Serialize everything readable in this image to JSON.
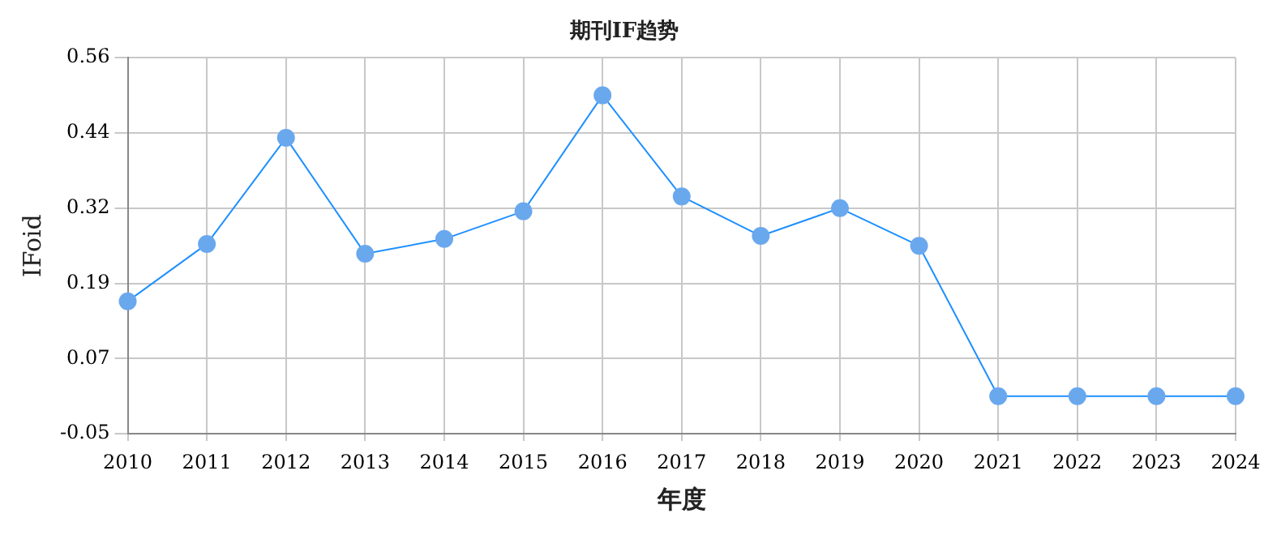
{
  "chart_data": {
    "type": "line",
    "title": "期刊IF趋势",
    "xlabel": "年度",
    "ylabel": "IFoid",
    "categories": [
      "2010",
      "2011",
      "2012",
      "2013",
      "2014",
      "2015",
      "2016",
      "2017",
      "2018",
      "2019",
      "2020",
      "2021",
      "2022",
      "2023",
      "2024"
    ],
    "series": [
      {
        "color": "#1e90ff",
        "values": [
          0.165,
          0.258,
          0.43,
          0.242,
          0.266,
          0.311,
          0.499,
          0.335,
          0.271,
          0.316,
          0.255,
          0.011,
          0.011,
          0.011,
          0.011
        ]
      }
    ],
    "ylim": [
      -0.05,
      0.56
    ],
    "yticks": [
      {
        "value": -0.05,
        "label": "-0.05"
      },
      {
        "value": 0.072,
        "label": "0.07"
      },
      {
        "value": 0.194,
        "label": "0.19"
      },
      {
        "value": 0.316,
        "label": "0.32"
      },
      {
        "value": 0.438,
        "label": "0.44"
      },
      {
        "value": 0.56,
        "label": "0.56"
      }
    ],
    "grid": true,
    "marker": "circle",
    "line_style": "solid",
    "legend": false
  }
}
